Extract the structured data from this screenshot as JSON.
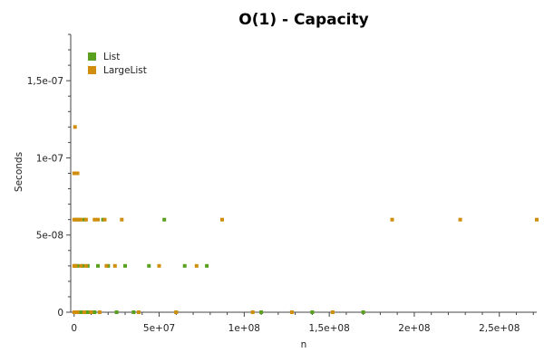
{
  "chart_data": {
    "type": "scatter",
    "title": "O(1) - Capacity",
    "xlabel": "n",
    "ylabel": "Seconds",
    "xlim": [
      -2000000,
      272000000
    ],
    "ylim": [
      0,
      1.8e-07
    ],
    "x_ticks": [
      {
        "value": 0,
        "label": "0"
      },
      {
        "value": 50000000,
        "label": "5e+07"
      },
      {
        "value": 100000000,
        "label": "1e+08"
      },
      {
        "value": 150000000,
        "label": "1,5e+08"
      },
      {
        "value": 200000000,
        "label": "2e+08"
      },
      {
        "value": 250000000,
        "label": "2,5e+08"
      }
    ],
    "y_ticks": [
      {
        "value": 0,
        "label": "0"
      },
      {
        "value": 5e-08,
        "label": "5e-08"
      },
      {
        "value": 1e-07,
        "label": "1e-07"
      },
      {
        "value": 1.5e-07,
        "label": "1,5e-07"
      }
    ],
    "grid": false,
    "legend_position": "top-left",
    "series": [
      {
        "name": "List",
        "color": "#58a01e",
        "points": [
          [
            500000,
            0
          ],
          [
            1500000,
            0
          ],
          [
            3000000,
            0
          ],
          [
            5000000,
            0
          ],
          [
            8000000,
            0
          ],
          [
            12000000,
            0
          ],
          [
            25000000,
            0
          ],
          [
            35000000,
            0
          ],
          [
            60000000,
            0
          ],
          [
            110000000,
            0
          ],
          [
            140000000,
            0
          ],
          [
            170000000,
            0
          ],
          [
            500000,
            3e-08
          ],
          [
            2000000,
            3e-08
          ],
          [
            5000000,
            3e-08
          ],
          [
            8000000,
            3e-08
          ],
          [
            14000000,
            3e-08
          ],
          [
            20000000,
            3e-08
          ],
          [
            30000000,
            3e-08
          ],
          [
            44000000,
            3e-08
          ],
          [
            65000000,
            3e-08
          ],
          [
            78000000,
            3e-08
          ],
          [
            1000000,
            6e-08
          ],
          [
            3000000,
            6e-08
          ],
          [
            6000000,
            6e-08
          ],
          [
            17000000,
            6e-08
          ],
          [
            53000000,
            6e-08
          ]
        ]
      },
      {
        "name": "LargeList",
        "color": "#d08e0c",
        "points": [
          [
            0,
            0
          ],
          [
            2000000,
            0
          ],
          [
            6000000,
            0
          ],
          [
            10000000,
            0
          ],
          [
            15000000,
            0
          ],
          [
            38000000,
            0
          ],
          [
            60000000,
            0
          ],
          [
            105000000,
            0
          ],
          [
            128000000,
            0
          ],
          [
            152000000,
            0
          ],
          [
            0,
            3e-08
          ],
          [
            1000000,
            3e-08
          ],
          [
            4000000,
            3e-08
          ],
          [
            7000000,
            3e-08
          ],
          [
            19000000,
            3e-08
          ],
          [
            24000000,
            3e-08
          ],
          [
            50000000,
            3e-08
          ],
          [
            72000000,
            3e-08
          ],
          [
            0,
            6e-08
          ],
          [
            2000000,
            6e-08
          ],
          [
            4000000,
            6e-08
          ],
          [
            7000000,
            6e-08
          ],
          [
            12000000,
            6e-08
          ],
          [
            14000000,
            6e-08
          ],
          [
            18000000,
            6e-08
          ],
          [
            28000000,
            6e-08
          ],
          [
            87000000,
            6e-08
          ],
          [
            187000000,
            6e-08
          ],
          [
            227000000,
            6e-08
          ],
          [
            272000000,
            6e-08
          ],
          [
            0,
            9e-08
          ],
          [
            2000000,
            9e-08
          ],
          [
            500000,
            1.2e-07
          ]
        ]
      }
    ]
  }
}
